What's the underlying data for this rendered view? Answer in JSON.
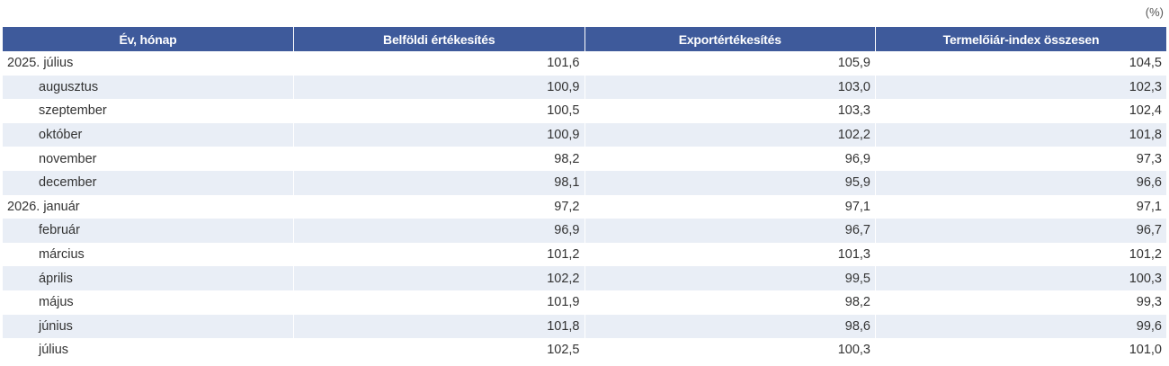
{
  "unit": "(%)",
  "table": {
    "header": [
      "Év, hónap",
      "Belföldi értékesítés",
      "Exportértékesítés",
      "Termelőiár-index összesen"
    ],
    "rows": [
      [
        "2025. július",
        "101,6",
        "105,9",
        "104,5"
      ],
      [
        "augusztus",
        "100,9",
        "103,0",
        "102,3"
      ],
      [
        "szeptember",
        "100,5",
        "103,3",
        "102,4"
      ],
      [
        "október",
        "100,9",
        "102,2",
        "101,8"
      ],
      [
        "november",
        "98,2",
        "96,9",
        "97,3"
      ],
      [
        "december",
        "98,1",
        "95,9",
        "96,6"
      ],
      [
        "2026. január",
        "97,2",
        "97,1",
        "97,1"
      ],
      [
        "február",
        "96,9",
        "96,7",
        "96,7"
      ],
      [
        "március",
        "101,2",
        "101,3",
        "101,2"
      ],
      [
        "április",
        "102,2",
        "99,5",
        "100,3"
      ],
      [
        "május",
        "101,9",
        "98,2",
        "99,3"
      ],
      [
        "június",
        "101,8",
        "98,6",
        "99,6"
      ],
      [
        "július",
        "102,5",
        "100,3",
        "101,0"
      ]
    ]
  }
}
